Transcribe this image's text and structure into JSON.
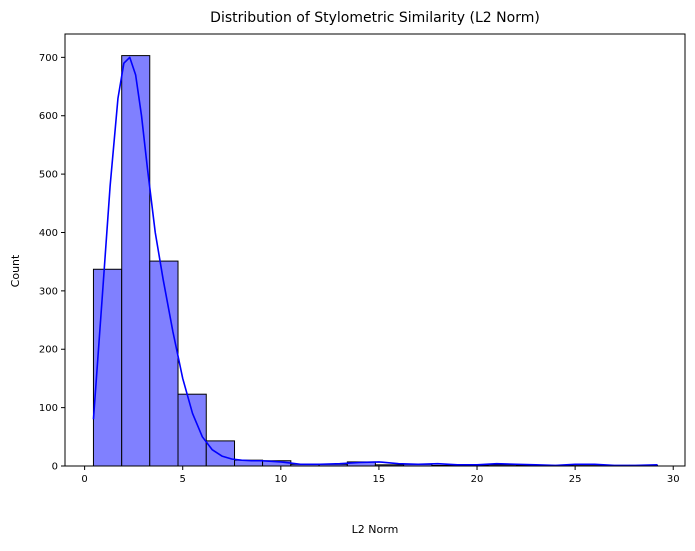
{
  "chart_data": {
    "type": "bar",
    "subtype": "histogram-with-kde",
    "title": "Distribution of Stylometric Similarity (L2 Norm)",
    "xlabel": "L2 Norm",
    "ylabel": "Count",
    "xlim": [
      -1.0,
      30.6
    ],
    "ylim": [
      0,
      740
    ],
    "xticks": [
      0,
      5,
      10,
      15,
      20,
      25,
      30
    ],
    "yticks": [
      0,
      100,
      200,
      300,
      400,
      500,
      600,
      700
    ],
    "grid": false,
    "bar_color": "#8080ff",
    "bar_edge_color": "#000000",
    "kde_color": "#0000ff",
    "bins": [
      {
        "x0": 0.45,
        "x1": 1.89,
        "count": 337
      },
      {
        "x0": 1.89,
        "x1": 3.32,
        "count": 703
      },
      {
        "x0": 3.32,
        "x1": 4.76,
        "count": 351
      },
      {
        "x0": 4.76,
        "x1": 6.2,
        "count": 123
      },
      {
        "x0": 6.2,
        "x1": 7.64,
        "count": 43
      },
      {
        "x0": 7.64,
        "x1": 9.07,
        "count": 10
      },
      {
        "x0": 9.07,
        "x1": 10.51,
        "count": 9
      },
      {
        "x0": 10.51,
        "x1": 11.95,
        "count": 3
      },
      {
        "x0": 11.95,
        "x1": 13.39,
        "count": 3
      },
      {
        "x0": 13.39,
        "x1": 14.82,
        "count": 7
      },
      {
        "x0": 14.82,
        "x1": 16.26,
        "count": 2
      },
      {
        "x0": 16.26,
        "x1": 17.7,
        "count": 3
      },
      {
        "x0": 17.7,
        "x1": 19.14,
        "count": 1
      },
      {
        "x0": 19.14,
        "x1": 20.57,
        "count": 1
      },
      {
        "x0": 20.57,
        "x1": 22.01,
        "count": 2
      },
      {
        "x0": 22.01,
        "x1": 23.45,
        "count": 1
      },
      {
        "x0": 23.45,
        "x1": 24.89,
        "count": 1
      },
      {
        "x0": 24.89,
        "x1": 26.32,
        "count": 2
      },
      {
        "x0": 26.32,
        "x1": 27.76,
        "count": 1
      },
      {
        "x0": 27.76,
        "x1": 29.2,
        "count": 1
      }
    ],
    "kde": {
      "x": [
        0.45,
        0.9,
        1.3,
        1.7,
        2.0,
        2.3,
        2.6,
        2.9,
        3.2,
        3.6,
        4.0,
        4.5,
        5.0,
        5.5,
        6.0,
        6.5,
        7.0,
        7.5,
        8.0,
        8.5,
        9.0,
        9.5,
        10.0,
        10.5,
        11.0,
        12.0,
        13.0,
        14.0,
        15.0,
        16.0,
        17.0,
        18.0,
        19.0,
        20.0,
        21.0,
        22.0,
        23.0,
        24.0,
        25.0,
        26.0,
        27.0,
        28.0,
        29.2
      ],
      "y": [
        80,
        290,
        480,
        630,
        690,
        700,
        670,
        600,
        510,
        400,
        320,
        230,
        150,
        90,
        50,
        28,
        17,
        12,
        10,
        9,
        9,
        8,
        7,
        5,
        3,
        3,
        4,
        6,
        7,
        4,
        3,
        4,
        2,
        2,
        4,
        3,
        2,
        1,
        3,
        3,
        1,
        1,
        2
      ]
    }
  }
}
